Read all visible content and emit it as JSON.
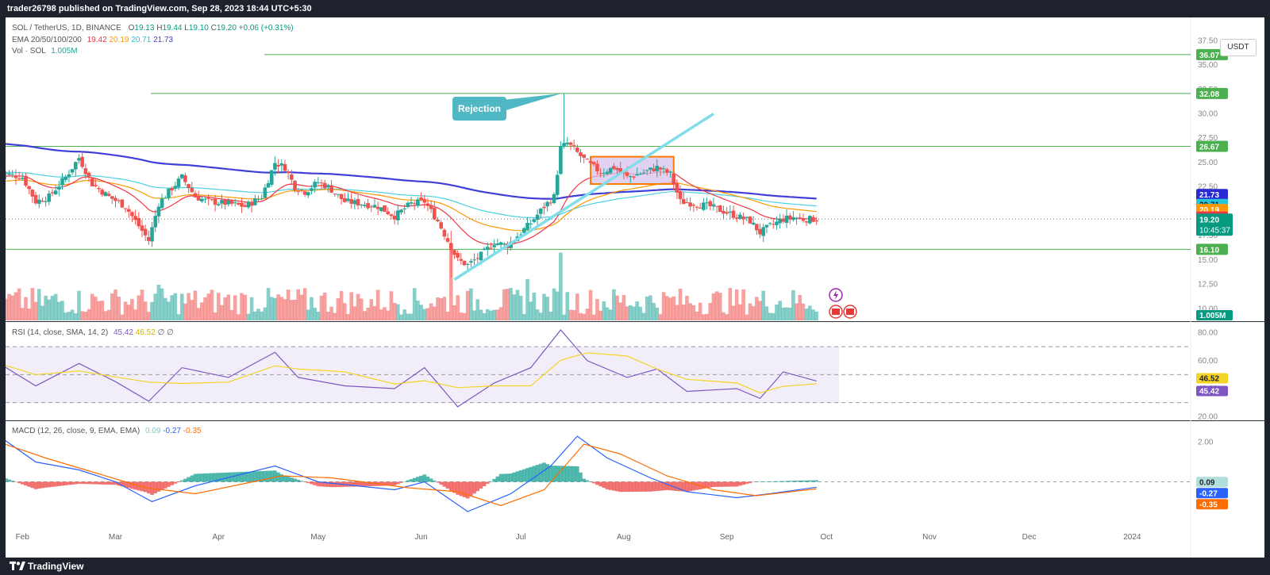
{
  "header": {
    "published": "trader26798 published on TradingView.com, Sep 28, 2023 18:44 UTC+5:30"
  },
  "footer": {
    "brand": "TradingView"
  },
  "price_pane": {
    "symbol_line": {
      "symbol": "SOL / TetherUS, 1D, BINANCE",
      "o_label": "O",
      "o": "19.13",
      "h_label": "H",
      "h": "19.44",
      "l_label": "L",
      "l": "19.10",
      "c_label": "C",
      "c": "19.20",
      "change": "+0.06 (+0.31%)"
    },
    "ema_line": {
      "label": "EMA 20/50/100/200",
      "v20": "19.42",
      "v50": "20.19",
      "v100": "20.71",
      "v200": "21.73"
    },
    "vol_line": {
      "label": "Vol · SOL",
      "value": "1.005M"
    },
    "currency": "USDT",
    "countdown": "10:45:37",
    "annotation": "Rejection"
  },
  "rsi_pane": {
    "label": "RSI (14, close, SMA, 14, 2)",
    "rsi": "45.42",
    "sma": "46.52",
    "extra1": "∅",
    "extra2": "∅"
  },
  "macd_pane": {
    "label": "MACD (12, 26, close, 9, EMA, EMA)",
    "hist": "0.09",
    "macd": "-0.27",
    "signal": "-0.35"
  },
  "colors": {
    "up": "#26a69a",
    "down": "#ef5350",
    "ema20": "#f23645",
    "ema50": "#ff9800",
    "ema100": "#4dd0e1",
    "ema200": "#3f3fd8",
    "hline": "#4caf50",
    "trendline": "#80deea",
    "box_fill": "#d8c3ee",
    "box_border": "#ff7a00",
    "rsi": "#7e57c2",
    "rsi_sma": "#f5d327",
    "macd": "#2962ff",
    "signal": "#ff6d00",
    "annotation": "#4fb8c4"
  },
  "chart_data": [
    {
      "type": "candlestick",
      "title": "SOL / TetherUS, 1D, BINANCE",
      "x_ticks": [
        "Feb",
        "Mar",
        "Apr",
        "May",
        "Jun",
        "Jul",
        "Aug",
        "Sep",
        "Oct",
        "Nov",
        "Dec",
        "2024"
      ],
      "y_ticks": [
        10.0,
        12.5,
        15.0,
        17.5,
        22.5,
        25.0,
        27.5,
        30.0,
        32.5,
        35.0,
        37.5
      ],
      "ylim": [
        8.0,
        38.5
      ],
      "grid": false,
      "horizontal_levels": [
        36.07,
        32.08,
        26.67,
        16.1
      ],
      "price_labels": [
        {
          "value": 36.07,
          "text": "36.07",
          "role": "level"
        },
        {
          "value": 32.08,
          "text": "32.08",
          "role": "level"
        },
        {
          "value": 26.67,
          "text": "26.67",
          "role": "level"
        },
        {
          "value": 21.73,
          "text": "21.73",
          "role": "ema200"
        },
        {
          "value": 20.71,
          "text": "20.71",
          "role": "ema100"
        },
        {
          "value": 20.19,
          "text": "20.19",
          "role": "ema50"
        },
        {
          "value": 19.42,
          "text": "19.42",
          "role": "ema20"
        },
        {
          "value": 19.2,
          "text": "19.20",
          "role": "last"
        },
        {
          "value": 16.1,
          "text": "16.10",
          "role": "level"
        }
      ],
      "close_series": [
        {
          "date": "2023-01-25",
          "close": 24.0
        },
        {
          "date": "2023-02-01",
          "close": 23.5
        },
        {
          "date": "2023-02-05",
          "close": 21.0
        },
        {
          "date": "2023-02-09",
          "close": 21.5
        },
        {
          "date": "2023-02-14",
          "close": 23.5
        },
        {
          "date": "2023-02-18",
          "close": 25.5
        },
        {
          "date": "2023-02-22",
          "close": 22.8
        },
        {
          "date": "2023-02-27",
          "close": 21.5
        },
        {
          "date": "2023-03-04",
          "close": 20.5
        },
        {
          "date": "2023-03-09",
          "close": 18.0
        },
        {
          "date": "2023-03-11",
          "close": 17.0
        },
        {
          "date": "2023-03-14",
          "close": 20.8
        },
        {
          "date": "2023-03-17",
          "close": 22.0
        },
        {
          "date": "2023-03-21",
          "close": 23.5
        },
        {
          "date": "2023-03-25",
          "close": 21.5
        },
        {
          "date": "2023-03-29",
          "close": 21.0
        },
        {
          "date": "2023-04-04",
          "close": 20.8
        },
        {
          "date": "2023-04-09",
          "close": 20.5
        },
        {
          "date": "2023-04-14",
          "close": 21.5
        },
        {
          "date": "2023-04-18",
          "close": 25.0
        },
        {
          "date": "2023-04-21",
          "close": 24.5
        },
        {
          "date": "2023-04-24",
          "close": 22.5
        },
        {
          "date": "2023-04-27",
          "close": 22.0
        },
        {
          "date": "2023-05-01",
          "close": 23.0
        },
        {
          "date": "2023-05-04",
          "close": 22.5
        },
        {
          "date": "2023-05-09",
          "close": 21.0
        },
        {
          "date": "2023-05-14",
          "close": 20.8
        },
        {
          "date": "2023-05-19",
          "close": 20.5
        },
        {
          "date": "2023-05-24",
          "close": 19.5
        },
        {
          "date": "2023-05-29",
          "close": 20.8
        },
        {
          "date": "2023-06-02",
          "close": 21.0
        },
        {
          "date": "2023-06-06",
          "close": 19.0
        },
        {
          "date": "2023-06-09",
          "close": 17.0
        },
        {
          "date": "2023-06-12",
          "close": 15.0
        },
        {
          "date": "2023-06-15",
          "close": 14.5
        },
        {
          "date": "2023-06-19",
          "close": 15.5
        },
        {
          "date": "2023-06-23",
          "close": 16.8
        },
        {
          "date": "2023-06-27",
          "close": 16.5
        },
        {
          "date": "2023-06-30",
          "close": 17.5
        },
        {
          "date": "2023-07-04",
          "close": 18.8
        },
        {
          "date": "2023-07-08",
          "close": 20.5
        },
        {
          "date": "2023-07-11",
          "close": 21.5
        },
        {
          "date": "2023-07-13",
          "close": 26.5
        },
        {
          "date": "2023-07-15",
          "close": 27.0
        },
        {
          "date": "2023-07-18",
          "close": 26.0
        },
        {
          "date": "2023-07-21",
          "close": 25.0
        },
        {
          "date": "2023-07-25",
          "close": 24.0
        },
        {
          "date": "2023-07-29",
          "close": 24.5
        },
        {
          "date": "2023-08-02",
          "close": 23.5
        },
        {
          "date": "2023-08-07",
          "close": 24.0
        },
        {
          "date": "2023-08-11",
          "close": 24.5
        },
        {
          "date": "2023-08-15",
          "close": 23.8
        },
        {
          "date": "2023-08-18",
          "close": 21.0
        },
        {
          "date": "2023-08-22",
          "close": 20.8
        },
        {
          "date": "2023-08-27",
          "close": 20.5
        },
        {
          "date": "2023-08-31",
          "close": 20.0
        },
        {
          "date": "2023-09-04",
          "close": 19.5
        },
        {
          "date": "2023-09-08",
          "close": 19.0
        },
        {
          "date": "2023-09-11",
          "close": 17.8
        },
        {
          "date": "2023-09-14",
          "close": 18.5
        },
        {
          "date": "2023-09-18",
          "close": 19.2
        },
        {
          "date": "2023-09-21",
          "close": 19.4
        },
        {
          "date": "2023-09-24",
          "close": 19.2
        },
        {
          "date": "2023-09-28",
          "close": 19.2
        }
      ],
      "series": [
        {
          "name": "EMA 20",
          "color": "#f23645",
          "last": 19.42
        },
        {
          "name": "EMA 50",
          "color": "#ff9800",
          "last": 20.19
        },
        {
          "name": "EMA 100",
          "color": "#4dd0e1",
          "last": 20.71
        },
        {
          "name": "EMA 200",
          "color": "#3f3fd8",
          "last": 21.73
        }
      ],
      "drawings": {
        "rejection_high": 32.08,
        "trendline": [
          {
            "date": "2023-06-11",
            "price": 13.0
          },
          {
            "date": "2023-08-28",
            "price": 30.0
          }
        ],
        "consolidation_box": {
          "start": "2023-07-22",
          "end": "2023-08-16",
          "low": 22.8,
          "high": 25.6
        }
      }
    },
    {
      "type": "bar",
      "title": "Vol · SOL",
      "last_value": "1.005M",
      "relative_volume_peaks": [
        {
          "date": "2023-06-10",
          "relative": 1.0
        },
        {
          "date": "2023-07-13",
          "relative": 0.95
        },
        {
          "date": "2023-07-03",
          "relative": 0.58
        },
        {
          "date": "2023-03-14",
          "relative": 0.5
        }
      ]
    },
    {
      "type": "line",
      "title": "RSI (14, close, SMA, 14, 2)",
      "y_ticks": [
        20.0,
        40.0,
        60.0,
        80.0
      ],
      "ylim": [
        15,
        85
      ],
      "band": [
        30,
        70
      ],
      "series": [
        {
          "name": "RSI",
          "color": "#7e57c2",
          "last": 45.42
        },
        {
          "name": "SMA",
          "color": "#f5d327",
          "last": 46.52
        }
      ],
      "rsi_points": [
        {
          "date": "2023-01-25",
          "value": 58
        },
        {
          "date": "2023-02-05",
          "value": 42
        },
        {
          "date": "2023-02-18",
          "value": 58
        },
        {
          "date": "2023-03-01",
          "value": 45
        },
        {
          "date": "2023-03-11",
          "value": 31
        },
        {
          "date": "2023-03-21",
          "value": 55
        },
        {
          "date": "2023-04-04",
          "value": 48
        },
        {
          "date": "2023-04-18",
          "value": 66
        },
        {
          "date": "2023-04-25",
          "value": 48
        },
        {
          "date": "2023-05-09",
          "value": 42
        },
        {
          "date": "2023-05-24",
          "value": 40
        },
        {
          "date": "2023-06-02",
          "value": 55
        },
        {
          "date": "2023-06-12",
          "value": 27
        },
        {
          "date": "2023-06-23",
          "value": 44
        },
        {
          "date": "2023-07-04",
          "value": 55
        },
        {
          "date": "2023-07-13",
          "value": 82
        },
        {
          "date": "2023-07-21",
          "value": 60
        },
        {
          "date": "2023-08-02",
          "value": 48
        },
        {
          "date": "2023-08-11",
          "value": 54
        },
        {
          "date": "2023-08-20",
          "value": 38
        },
        {
          "date": "2023-09-04",
          "value": 40
        },
        {
          "date": "2023-09-11",
          "value": 33
        },
        {
          "date": "2023-09-18",
          "value": 52
        },
        {
          "date": "2023-09-28",
          "value": 45.42
        }
      ]
    },
    {
      "type": "line",
      "title": "MACD (12, 26, close, 9, EMA, EMA)",
      "y_ticks": [
        2.0
      ],
      "ylim": [
        -2.5,
        2.6
      ],
      "series": [
        {
          "name": "MACD",
          "color": "#2962ff",
          "last": -0.27
        },
        {
          "name": "Signal",
          "color": "#ff6d00",
          "last": -0.35
        },
        {
          "name": "Histogram",
          "color": "#26a69a",
          "last": 0.09
        }
      ],
      "macd_points": [
        {
          "date": "2023-01-25",
          "value": 2.3
        },
        {
          "date": "2023-02-05",
          "value": 1.0
        },
        {
          "date": "2023-02-18",
          "value": 0.6
        },
        {
          "date": "2023-03-01",
          "value": 0.0
        },
        {
          "date": "2023-03-12",
          "value": -1.0
        },
        {
          "date": "2023-03-25",
          "value": -0.2
        },
        {
          "date": "2023-04-18",
          "value": 0.8
        },
        {
          "date": "2023-05-01",
          "value": 0.0
        },
        {
          "date": "2023-05-24",
          "value": -0.4
        },
        {
          "date": "2023-06-02",
          "value": 0.0
        },
        {
          "date": "2023-06-15",
          "value": -1.5
        },
        {
          "date": "2023-06-28",
          "value": -0.6
        },
        {
          "date": "2023-07-10",
          "value": 0.8
        },
        {
          "date": "2023-07-18",
          "value": 2.3
        },
        {
          "date": "2023-07-27",
          "value": 1.2
        },
        {
          "date": "2023-08-09",
          "value": 0.2
        },
        {
          "date": "2023-08-20",
          "value": -0.5
        },
        {
          "date": "2023-09-04",
          "value": -0.8
        },
        {
          "date": "2023-09-14",
          "value": -0.6
        },
        {
          "date": "2023-09-28",
          "value": -0.27
        }
      ],
      "signal_points": [
        {
          "date": "2023-01-25",
          "value": 2.0
        },
        {
          "date": "2023-02-08",
          "value": 1.2
        },
        {
          "date": "2023-02-22",
          "value": 0.5
        },
        {
          "date": "2023-03-10",
          "value": -0.3
        },
        {
          "date": "2023-03-25",
          "value": -0.6
        },
        {
          "date": "2023-04-20",
          "value": 0.3
        },
        {
          "date": "2023-05-05",
          "value": 0.2
        },
        {
          "date": "2023-05-28",
          "value": -0.3
        },
        {
          "date": "2023-06-12",
          "value": -0.5
        },
        {
          "date": "2023-06-25",
          "value": -1.2
        },
        {
          "date": "2023-07-08",
          "value": -0.4
        },
        {
          "date": "2023-07-20",
          "value": 1.9
        },
        {
          "date": "2023-07-31",
          "value": 1.4
        },
        {
          "date": "2023-08-14",
          "value": 0.3
        },
        {
          "date": "2023-08-28",
          "value": -0.4
        },
        {
          "date": "2023-09-10",
          "value": -0.7
        },
        {
          "date": "2023-09-28",
          "value": -0.35
        }
      ]
    }
  ]
}
